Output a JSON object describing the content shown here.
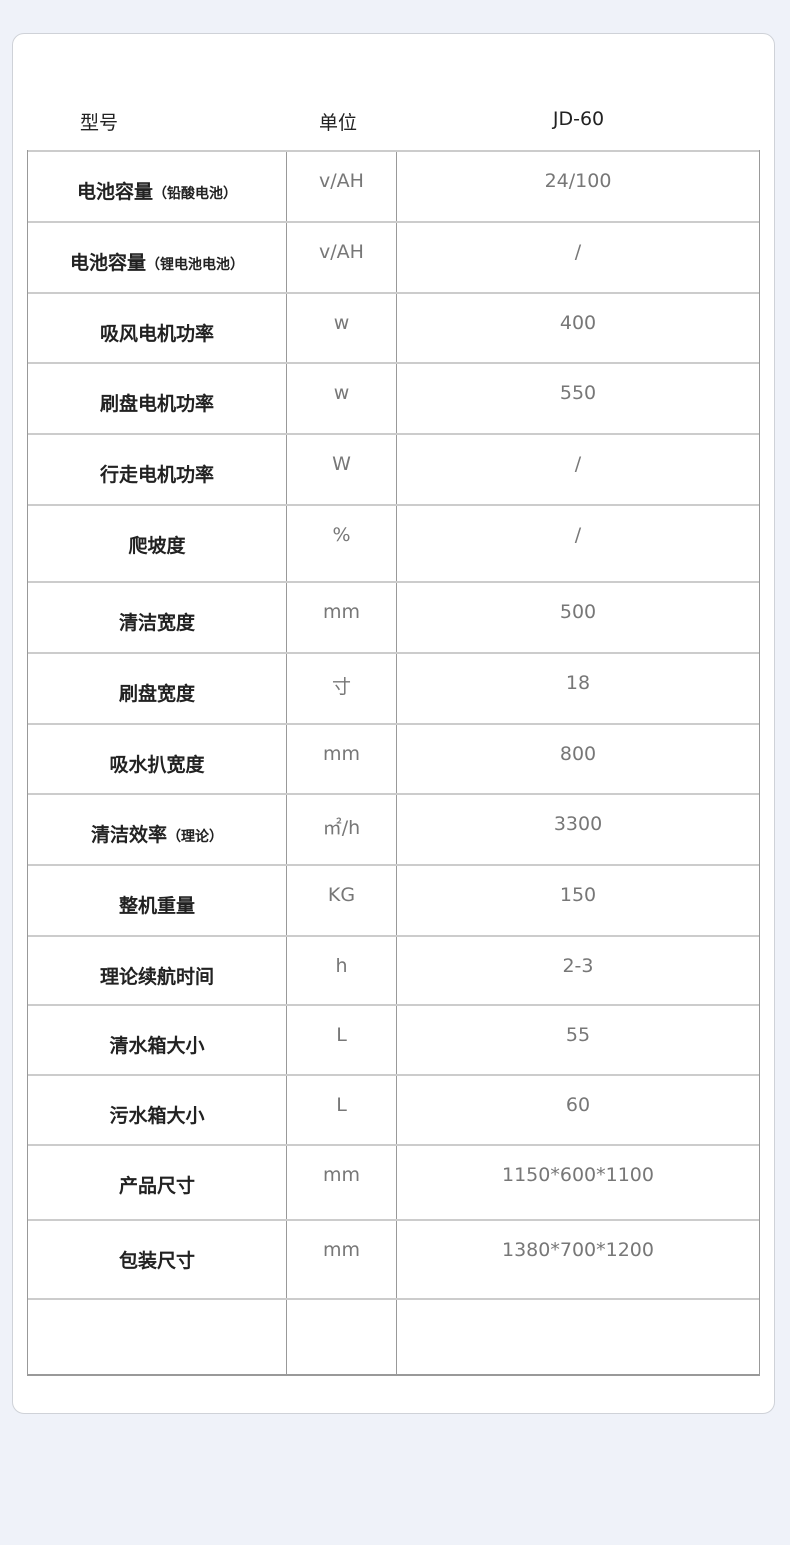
{
  "header": {
    "model_label": "型号",
    "unit_label": "单位",
    "model_value": "JD-60"
  },
  "rows": [
    {
      "label": "电池容量",
      "note": "（铅酸电池）",
      "unit": "v/AH",
      "value": "24/100"
    },
    {
      "label": "电池容量",
      "note": "（锂电池电池）",
      "unit": "v/AH",
      "value": "/"
    },
    {
      "label": "吸风电机功率",
      "note": "",
      "unit": "w",
      "value": "400"
    },
    {
      "label": "刷盘电机功率",
      "note": "",
      "unit": "w",
      "value": "550"
    },
    {
      "label": "行走电机功率",
      "note": "",
      "unit": "W",
      "value": "/"
    },
    {
      "label": "爬坡度",
      "note": "",
      "unit": "%",
      "value": "/"
    },
    {
      "label": "清洁宽度",
      "note": "",
      "unit": "mm",
      "value": "500"
    },
    {
      "label": "刷盘宽度",
      "note": "",
      "unit": "寸",
      "value": "18"
    },
    {
      "label": "吸水扒宽度",
      "note": "",
      "unit": "mm",
      "value": "800"
    },
    {
      "label": "清洁效率",
      "note": "（理论）",
      "unit": "㎡/h",
      "value": "3300"
    },
    {
      "label": "整机重量",
      "note": "",
      "unit": "KG",
      "value": "150"
    },
    {
      "label": "理论续航时间",
      "note": "",
      "unit": "h",
      "value": "2-3"
    },
    {
      "label": "清水箱大小",
      "note": "",
      "unit": "L",
      "value": "55"
    },
    {
      "label": "污水箱大小",
      "note": "",
      "unit": "L",
      "value": "60"
    },
    {
      "label": "产品尺寸",
      "note": "",
      "unit": "mm",
      "value": "1150*600*1100"
    },
    {
      "label": "包装尺寸",
      "note": "",
      "unit": "mm",
      "value": "1380*700*1200"
    },
    {
      "label": "",
      "note": "",
      "unit": "",
      "value": ""
    }
  ]
}
